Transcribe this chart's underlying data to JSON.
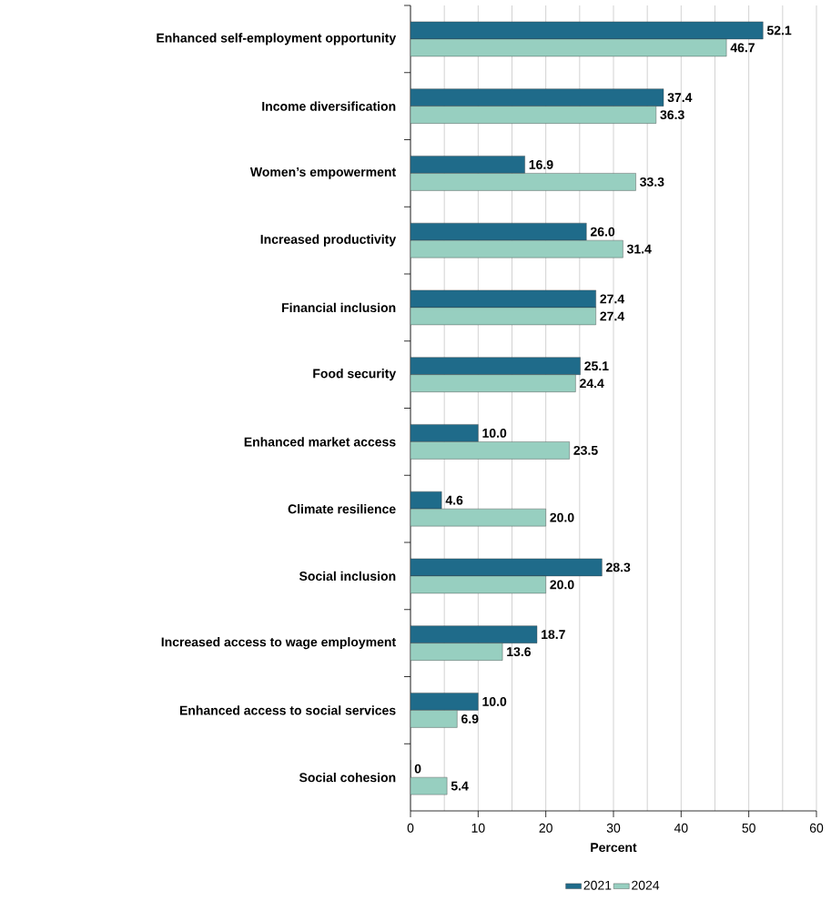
{
  "chart_data": {
    "type": "bar",
    "orientation": "horizontal",
    "xlabel": "Percent",
    "categories": [
      "Enhanced self-employment opportunity",
      "Income diversification",
      "Women’s empowerment",
      "Increased productivity",
      "Financial inclusion",
      "Food security",
      "Enhanced market access",
      "Climate resilience",
      "Social inclusion",
      "Increased access to wage employment",
      "Enhanced access to social services",
      "Social cohesion"
    ],
    "series": [
      {
        "name": "2021",
        "color": "#1f6b8a",
        "values": [
          52.1,
          37.4,
          16.9,
          26.0,
          27.4,
          25.1,
          10.0,
          4.6,
          28.3,
          18.7,
          10.0,
          0
        ],
        "value_labels": [
          "52.1",
          "37.4",
          "16.9",
          "26.0",
          "27.4",
          "25.1",
          "10.0",
          "4.6",
          "28.3",
          "18.7",
          "10.0",
          "0"
        ]
      },
      {
        "name": "2024",
        "color": "#97cfc0",
        "values": [
          46.7,
          36.3,
          33.3,
          31.4,
          27.4,
          24.4,
          23.5,
          20.0,
          20.0,
          13.6,
          6.9,
          5.4
        ],
        "value_labels": [
          "46.7",
          "36.3",
          "33.3",
          "31.4",
          "27.4",
          "24.4",
          "23.5",
          "20.0",
          "20.0",
          "13.6",
          "6.9",
          "5.4"
        ]
      }
    ],
    "xlim": [
      0,
      60
    ],
    "xticks": [
      0,
      10,
      20,
      30,
      40,
      50,
      60
    ],
    "grid": "x",
    "legend": "bottom"
  }
}
